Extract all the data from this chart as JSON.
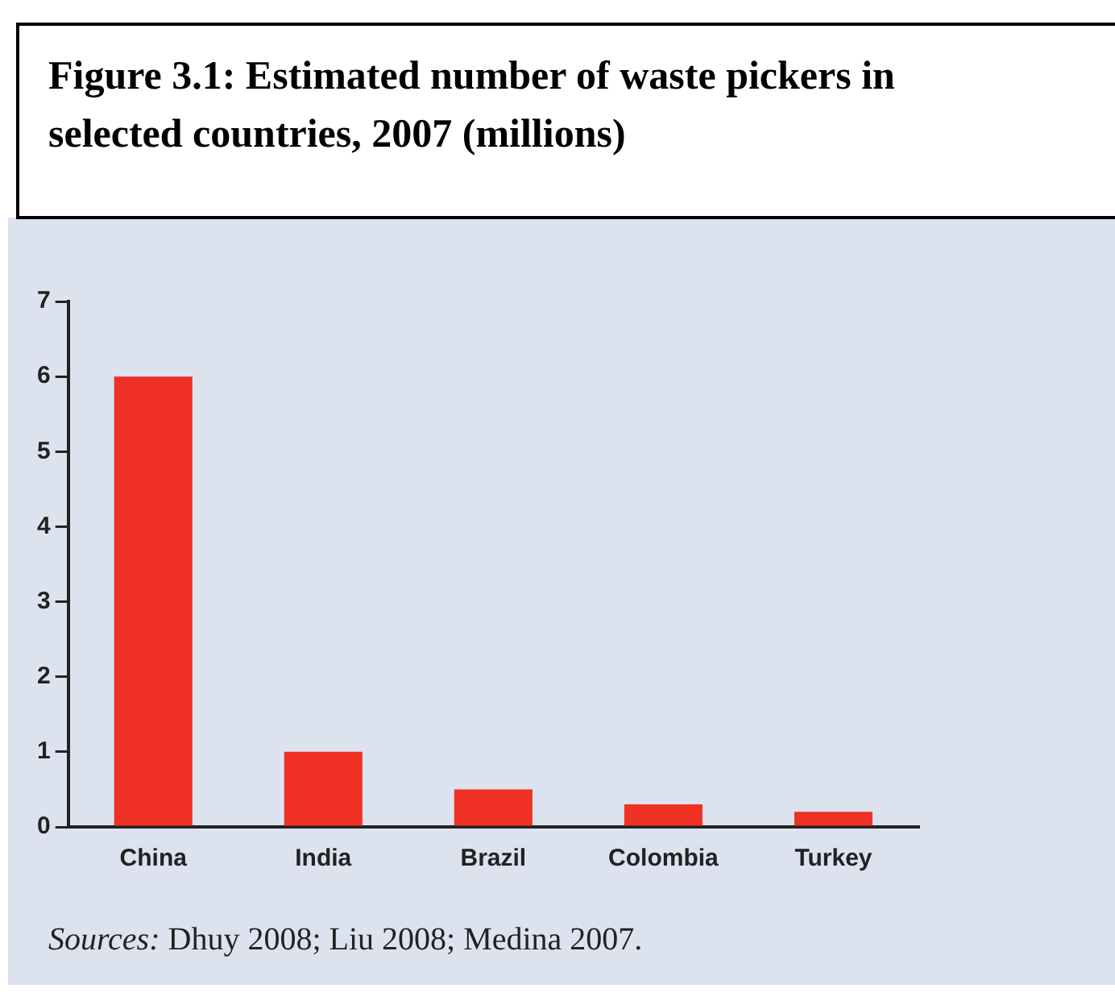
{
  "chart_data": {
    "type": "bar",
    "title": "Figure 3.1: Estimated number of waste pickers in selected countries, 2007 (millions)",
    "categories": [
      "China",
      "India",
      "Brazil",
      "Colombia",
      "Turkey"
    ],
    "values": [
      6,
      1,
      0.5,
      0.3,
      0.2
    ],
    "color": "#ee3124",
    "ylim": [
      0,
      7
    ],
    "yticks": [
      0,
      1,
      2,
      3,
      4,
      5,
      6,
      7
    ],
    "grid": false,
    "legend": false,
    "annotations": [
      "Sources: Dhuy 2008; Liu 2008; Medina 2007."
    ]
  }
}
